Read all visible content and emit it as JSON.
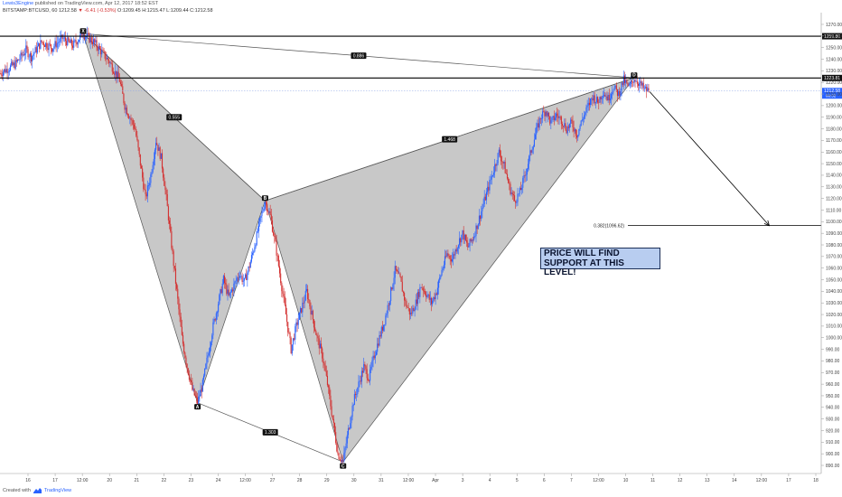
{
  "header": {
    "author": "Lewis3Engine",
    "published_text": "published on TradingView.com, Apr 12, 2017 18:52 EST",
    "symbol": "BITSTAMP:BTCUSD, 60",
    "last": "1212.58",
    "change": "▼ -6.41 (-0.53%)",
    "ohlc": "O:1209.45 H:1215.47 L:1209.44 C:1212.58"
  },
  "footer": {
    "created_with": "Created with",
    "brand": "TradingView"
  },
  "callout": {
    "line1": "PRICE WILL FIND",
    "line2": "SUPPORT AT THIS LEVEL!"
  },
  "colors": {
    "up": "#2962ff",
    "down": "#d32f2f",
    "pattern_fill": "#c8c8c8",
    "pattern_line": "#555555",
    "level_line": "#000000",
    "callout_bg": "#b8cdf0"
  },
  "chart_data": {
    "type": "line",
    "ylim": [
      883,
      1277
    ],
    "x_ticks": [
      "16",
      "17",
      "12:00",
      "20",
      "21",
      "22",
      "23",
      "24",
      "12:00",
      "27",
      "28",
      "29",
      "30",
      "31",
      "12:00",
      "Apr",
      "3",
      "4",
      "5",
      "6",
      "7",
      "12:00",
      "10",
      "11",
      "12",
      "13",
      "14",
      "12:00",
      "17",
      "18"
    ],
    "y_ticks": [
      890,
      900,
      910,
      920,
      930,
      940,
      950,
      960,
      970,
      980,
      990,
      1000,
      1010,
      1020,
      1030,
      1040,
      1050,
      1060,
      1070,
      1080,
      1090,
      1100,
      1110,
      1120,
      1130,
      1140,
      1150,
      1160,
      1170,
      1180,
      1190,
      1200,
      1210,
      1220,
      1230,
      1240,
      1250,
      1260,
      1270
    ],
    "price_path": [
      [
        0,
        1228
      ],
      [
        3,
        1236
      ],
      [
        5,
        1248
      ],
      [
        6,
        1242
      ],
      [
        8,
        1255
      ],
      [
        10,
        1250
      ],
      [
        12,
        1258
      ],
      [
        14,
        1252
      ],
      [
        16,
        1262
      ],
      [
        18,
        1255
      ],
      [
        21,
        1238
      ],
      [
        23,
        1222
      ],
      [
        24,
        1200
      ],
      [
        26,
        1180
      ],
      [
        27,
        1150
      ],
      [
        28,
        1120
      ],
      [
        29,
        1140
      ],
      [
        30,
        1170
      ],
      [
        31,
        1155
      ],
      [
        32,
        1120
      ],
      [
        33,
        1080
      ],
      [
        34,
        1040
      ],
      [
        35,
        1000
      ],
      [
        36,
        975
      ],
      [
        37,
        955
      ],
      [
        38,
        944
      ],
      [
        39,
        960
      ],
      [
        40,
        985
      ],
      [
        41,
        1010
      ],
      [
        42,
        1030
      ],
      [
        43,
        1050
      ],
      [
        44,
        1035
      ],
      [
        45,
        1045
      ],
      [
        46,
        1055
      ],
      [
        47,
        1048
      ],
      [
        48,
        1062
      ],
      [
        49,
        1080
      ],
      [
        50,
        1100
      ],
      [
        51,
        1118
      ],
      [
        52,
        1105
      ],
      [
        53,
        1080
      ],
      [
        54,
        1050
      ],
      [
        55,
        1020
      ],
      [
        56,
        990
      ],
      [
        57,
        1010
      ],
      [
        58,
        1025
      ],
      [
        59,
        1040
      ],
      [
        60,
        1020
      ],
      [
        61,
        1000
      ],
      [
        62,
        985
      ],
      [
        63,
        960
      ],
      [
        64,
        930
      ],
      [
        65,
        900
      ],
      [
        66,
        893
      ],
      [
        67,
        920
      ],
      [
        68,
        945
      ],
      [
        69,
        960
      ],
      [
        70,
        975
      ],
      [
        71,
        965
      ],
      [
        72,
        985
      ],
      [
        73,
        1000
      ],
      [
        74,
        1015
      ],
      [
        75,
        1035
      ],
      [
        76,
        1058
      ],
      [
        77,
        1050
      ],
      [
        78,
        1030
      ],
      [
        79,
        1020
      ],
      [
        80,
        1030
      ],
      [
        81,
        1045
      ],
      [
        82,
        1038
      ],
      [
        83,
        1030
      ],
      [
        84,
        1040
      ],
      [
        85,
        1058
      ],
      [
        86,
        1072
      ],
      [
        87,
        1068
      ],
      [
        88,
        1080
      ],
      [
        89,
        1090
      ],
      [
        90,
        1078
      ],
      [
        91,
        1086
      ],
      [
        92,
        1100
      ],
      [
        93,
        1115
      ],
      [
        94,
        1130
      ],
      [
        95,
        1145
      ],
      [
        96,
        1160
      ],
      [
        97,
        1148
      ],
      [
        98,
        1130
      ],
      [
        99,
        1118
      ],
      [
        100,
        1125
      ],
      [
        101,
        1140
      ],
      [
        102,
        1158
      ],
      [
        103,
        1175
      ],
      [
        104,
        1190
      ],
      [
        105,
        1196
      ],
      [
        106,
        1185
      ],
      [
        107,
        1192
      ],
      [
        108,
        1188
      ],
      [
        109,
        1180
      ],
      [
        110,
        1185
      ],
      [
        111,
        1175
      ],
      [
        112,
        1188
      ],
      [
        113,
        1198
      ],
      [
        114,
        1208
      ],
      [
        115,
        1203
      ],
      [
        116,
        1212
      ],
      [
        117,
        1206
      ],
      [
        118,
        1216
      ],
      [
        119,
        1210
      ],
      [
        120,
        1222
      ],
      [
        121,
        1215
      ],
      [
        122,
        1224
      ],
      [
        123,
        1219
      ],
      [
        124,
        1214
      ],
      [
        125,
        1212
      ]
    ],
    "pattern": {
      "points": [
        {
          "name": "X",
          "t": 16,
          "price": 1262
        },
        {
          "name": "A",
          "t": 38,
          "price": 944
        },
        {
          "name": "B",
          "t": 51,
          "price": 1118
        },
        {
          "name": "C",
          "t": 66,
          "price": 893
        },
        {
          "name": "D",
          "t": 122,
          "price": 1224
        }
      ],
      "ratios": [
        {
          "label": "0.886",
          "from": "X",
          "to": "D"
        },
        {
          "label": "0.555",
          "from": "X",
          "to": "B"
        },
        {
          "label": "1.468",
          "from": "B",
          "to": "D"
        },
        {
          "label": "1.303",
          "from": "A",
          "to": "C"
        }
      ]
    },
    "levels": [
      {
        "price": 1259.8,
        "label": "1259.80"
      },
      {
        "price": 1223.81,
        "label": "1223.81"
      }
    ],
    "current_price": {
      "value": 1212.58,
      "label": "1212.58",
      "sub": "08:52"
    },
    "target": {
      "label": "0.382(1096.62)",
      "price": 1096.62
    },
    "arrow": {
      "from_t": 125,
      "from_price": 1212,
      "to_t": 148,
      "to_price": 1096.62
    },
    "t_max": 158
  }
}
